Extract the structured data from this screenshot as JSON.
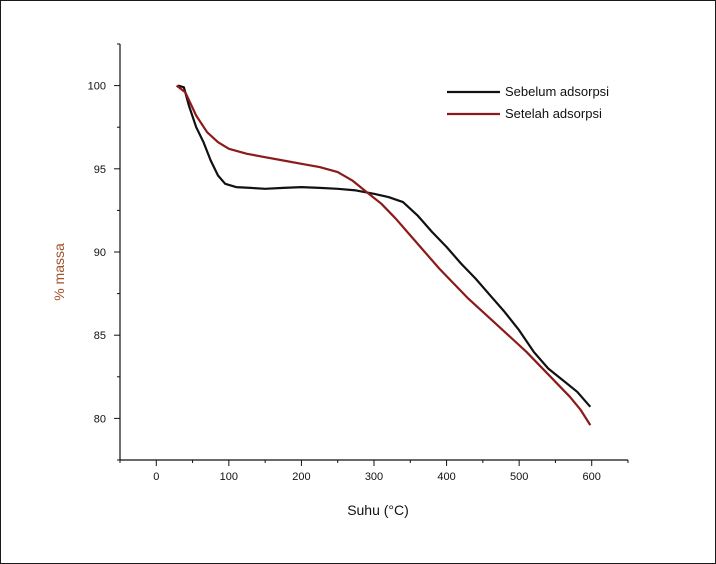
{
  "chart_data": {
    "type": "line",
    "title": "",
    "xlabel": "Suhu (°C)",
    "ylabel": "% massa",
    "xlim": [
      -50,
      650
    ],
    "ylim": [
      77.5,
      102.5
    ],
    "xticks": [
      0,
      100,
      200,
      300,
      400,
      500,
      600
    ],
    "yticks": [
      80,
      85,
      90,
      95,
      100
    ],
    "grid": false,
    "legend_position": "top-right",
    "series": [
      {
        "name": "Sebelum adsorpsi",
        "color": "#111111",
        "points": [
          [
            30,
            100.0
          ],
          [
            38,
            99.9
          ],
          [
            45,
            98.8
          ],
          [
            55,
            97.5
          ],
          [
            65,
            96.6
          ],
          [
            75,
            95.5
          ],
          [
            85,
            94.6
          ],
          [
            95,
            94.1
          ],
          [
            110,
            93.9
          ],
          [
            130,
            93.85
          ],
          [
            150,
            93.8
          ],
          [
            175,
            93.85
          ],
          [
            200,
            93.9
          ],
          [
            225,
            93.85
          ],
          [
            250,
            93.8
          ],
          [
            275,
            93.7
          ],
          [
            300,
            93.5
          ],
          [
            320,
            93.3
          ],
          [
            340,
            93.0
          ],
          [
            360,
            92.2
          ],
          [
            380,
            91.2
          ],
          [
            400,
            90.3
          ],
          [
            420,
            89.3
          ],
          [
            440,
            88.4
          ],
          [
            460,
            87.4
          ],
          [
            480,
            86.4
          ],
          [
            500,
            85.3
          ],
          [
            520,
            84.0
          ],
          [
            540,
            83.0
          ],
          [
            560,
            82.3
          ],
          [
            580,
            81.6
          ],
          [
            598,
            80.7
          ]
        ]
      },
      {
        "name": "Setelah adsorpsi",
        "color": "#8b1a1a",
        "points": [
          [
            28,
            100.0
          ],
          [
            40,
            99.6
          ],
          [
            55,
            98.2
          ],
          [
            70,
            97.2
          ],
          [
            85,
            96.6
          ],
          [
            100,
            96.2
          ],
          [
            125,
            95.9
          ],
          [
            150,
            95.7
          ],
          [
            175,
            95.5
          ],
          [
            200,
            95.3
          ],
          [
            225,
            95.1
          ],
          [
            250,
            94.8
          ],
          [
            270,
            94.3
          ],
          [
            290,
            93.6
          ],
          [
            310,
            92.9
          ],
          [
            330,
            92.0
          ],
          [
            350,
            91.0
          ],
          [
            370,
            90.0
          ],
          [
            390,
            89.0
          ],
          [
            410,
            88.1
          ],
          [
            430,
            87.2
          ],
          [
            450,
            86.4
          ],
          [
            470,
            85.6
          ],
          [
            490,
            84.8
          ],
          [
            510,
            84.0
          ],
          [
            530,
            83.1
          ],
          [
            550,
            82.2
          ],
          [
            570,
            81.3
          ],
          [
            585,
            80.5
          ],
          [
            598,
            79.6
          ]
        ]
      }
    ]
  }
}
